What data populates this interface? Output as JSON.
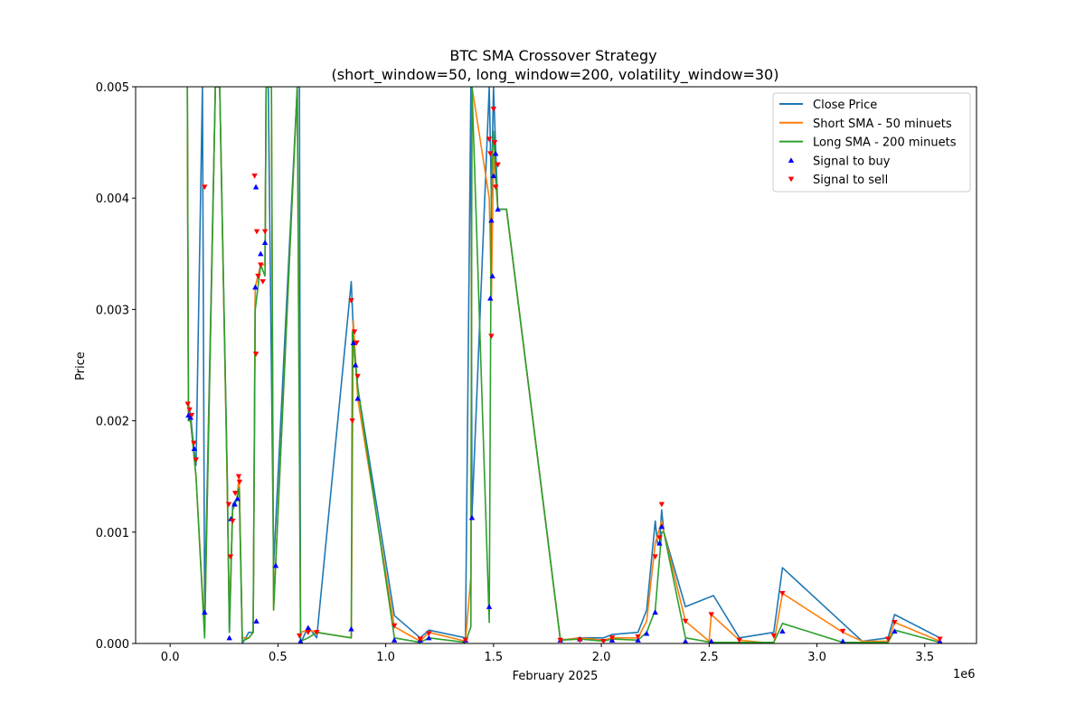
{
  "chart_data": {
    "type": "line",
    "title": "BTC SMA Crossover Strategy",
    "subtitle": "(short_window=50, long_window=200, volatility_window=30)",
    "xlabel": "February 2025",
    "ylabel": "Price",
    "x_offset_text": "1e6",
    "xlim": [
      -160000,
      3740000
    ],
    "ylim": [
      0,
      0.005
    ],
    "x_ticks": [
      0,
      500000,
      1000000,
      1500000,
      2000000,
      2500000,
      3000000,
      3500000
    ],
    "x_tick_labels": [
      "0.0",
      "0.5",
      "1.0",
      "1.5",
      "2.0",
      "2.5",
      "3.0",
      "3.5"
    ],
    "y_ticks": [
      0,
      0.001,
      0.002,
      0.003,
      0.004,
      0.005
    ],
    "y_tick_labels": [
      "0.000",
      "0.001",
      "0.002",
      "0.003",
      "0.004",
      "0.005"
    ],
    "grid": false,
    "legend_position": "top-right",
    "colors": {
      "close": "#1f77b4",
      "short": "#ff7f0e",
      "long": "#2ca02c",
      "buy": "#0000ff",
      "sell": "#ff0000"
    },
    "series": [
      {
        "name": "Close Price",
        "x": [
          80000,
          85000,
          95000,
          110000,
          120000,
          150000,
          160000,
          210000,
          230000,
          265000,
          275000,
          290000,
          310000,
          320000,
          335000,
          365000,
          385000,
          395000,
          420000,
          440000,
          445000,
          455000,
          480000,
          590000,
          600000,
          605000,
          640000,
          680000,
          840000,
          850000,
          870000,
          1040000,
          1160000,
          1200000,
          1370000,
          1395000,
          1400000,
          1480000,
          1490000,
          1500000,
          1520000,
          1560000,
          1810000,
          1900000,
          2010000,
          2050000,
          2170000,
          2210000,
          2250000,
          2260000,
          2270000,
          2280000,
          2290000,
          2390000,
          2520000,
          2640000,
          2800000,
          2840000,
          3120000,
          3210000,
          3330000,
          3360000,
          3570000
        ],
        "y": [
          0.005,
          0.00215,
          0.00205,
          0.00175,
          0.0016,
          0.005,
          0.0003,
          0.005,
          0.005,
          0.0015,
          0.0001,
          0.00125,
          0.0013,
          0.0015,
          0.0,
          0.0001,
          0.0001,
          0.0032,
          0.0034,
          0.0034,
          0.005,
          0.005,
          0.0007,
          0.005,
          0.005,
          0.0,
          0.00015,
          5e-05,
          0.00325,
          0.0028,
          0.0023,
          0.00025,
          5e-05,
          0.00012,
          5e-05,
          0.005,
          0.00115,
          0.005,
          0.004,
          0.005,
          0.0039,
          0.0039,
          3e-05,
          5e-05,
          5e-05,
          8e-05,
          0.0001,
          0.0003,
          0.0011,
          0.0009,
          0.0009,
          0.0012,
          0.001,
          0.00033,
          0.00043,
          5e-05,
          0.0001,
          0.00068,
          0.00018,
          2e-05,
          5e-05,
          0.00026,
          5e-05
        ]
      },
      {
        "name": "Short SMA - 50 minuets",
        "x": [
          80000,
          85000,
          95000,
          110000,
          120000,
          160000,
          210000,
          230000,
          265000,
          275000,
          290000,
          310000,
          320000,
          335000,
          365000,
          385000,
          395000,
          420000,
          440000,
          445000,
          470000,
          480000,
          590000,
          605000,
          640000,
          680000,
          840000,
          850000,
          870000,
          1040000,
          1160000,
          1200000,
          1370000,
          1395000,
          1400000,
          1480000,
          1490000,
          1500000,
          1520000,
          1560000,
          1810000,
          1900000,
          2010000,
          2050000,
          2170000,
          2210000,
          2250000,
          2280000,
          2290000,
          2390000,
          2500000,
          2510000,
          2640000,
          2800000,
          2840000,
          3120000,
          3210000,
          3330000,
          3360000,
          3570000
        ],
        "y": [
          0.005,
          0.0021,
          0.002,
          0.0017,
          0.0015,
          0.0001,
          0.005,
          0.005,
          0.0014,
          0.0002,
          0.0012,
          0.0013,
          0.0015,
          5e-05,
          5e-05,
          0.0001,
          0.0032,
          0.0034,
          0.0034,
          0.005,
          0.005,
          0.0003,
          0.005,
          0.0001,
          0.00012,
          0.0001,
          5e-05,
          0.0029,
          0.0022,
          0.00015,
          2e-05,
          0.0001,
          2e-05,
          0.0006,
          0.005,
          0.004,
          0.0031,
          0.0044,
          0.0039,
          0.0039,
          3e-05,
          5e-05,
          3e-05,
          5e-05,
          5e-05,
          0.0002,
          0.0009,
          0.0011,
          0.001,
          0.0002,
          2e-05,
          0.00026,
          3e-05,
          0.0,
          0.00045,
          0.0001,
          2e-05,
          2e-05,
          0.00019,
          2e-05
        ]
      },
      {
        "name": "Long SMA - 200 minuets",
        "x": [
          80000,
          85000,
          95000,
          110000,
          120000,
          160000,
          210000,
          230000,
          265000,
          275000,
          290000,
          310000,
          320000,
          335000,
          365000,
          385000,
          395000,
          420000,
          440000,
          445000,
          470000,
          480000,
          590000,
          605000,
          640000,
          680000,
          840000,
          845000,
          870000,
          1040000,
          1160000,
          1200000,
          1370000,
          1395000,
          1400000,
          1480000,
          1490000,
          1500000,
          1520000,
          1560000,
          1810000,
          1900000,
          2010000,
          2050000,
          2170000,
          2210000,
          2250000,
          2280000,
          2290000,
          2390000,
          2510000,
          2640000,
          2800000,
          2840000,
          3120000,
          3210000,
          3330000,
          3360000,
          3570000
        ],
        "y": [
          0.005,
          0.002,
          0.002,
          0.0017,
          0.0015,
          5e-05,
          0.005,
          0.005,
          0.0015,
          0.0001,
          0.0012,
          0.0013,
          0.0014,
          2e-05,
          5e-05,
          0.0001,
          0.003,
          0.0034,
          0.0033,
          0.005,
          0.005,
          0.0003,
          0.005,
          2e-05,
          5e-05,
          0.0001,
          5e-05,
          0.0028,
          0.0023,
          5e-05,
          1e-05,
          5e-05,
          1e-05,
          0.00015,
          0.005,
          0.00019,
          0.0042,
          0.0046,
          0.0039,
          0.0039,
          3e-05,
          4e-05,
          2e-05,
          4e-05,
          3e-05,
          0.0001,
          0.0003,
          0.001,
          0.001,
          5e-05,
          1e-05,
          1e-05,
          1e-05,
          0.00018,
          1e-05,
          1e-05,
          1e-05,
          0.00012,
          1e-05
        ]
      }
    ],
    "markers": [
      {
        "name": "Signal to buy",
        "symbol": "triangle-up",
        "x": [
          85000,
          95000,
          112000,
          160000,
          275000,
          282000,
          300000,
          312000,
          395000,
          398000,
          400000,
          420000,
          440000,
          490000,
          605000,
          640000,
          840000,
          850000,
          860000,
          870000,
          1040000,
          1160000,
          1200000,
          1370000,
          1400000,
          1480000,
          1485000,
          1490000,
          1495000,
          1500000,
          1510000,
          1520000,
          1810000,
          1900000,
          2050000,
          2170000,
          2210000,
          2250000,
          2270000,
          2280000,
          2390000,
          2510000,
          2840000,
          3120000,
          3360000,
          3570000
        ],
        "y": [
          0.00205,
          0.00203,
          0.00175,
          0.00028,
          5e-05,
          0.00112,
          0.00125,
          0.0013,
          0.0032,
          0.0041,
          0.0002,
          0.0035,
          0.0036,
          0.0007,
          2e-05,
          0.00014,
          0.00013,
          0.0027,
          0.0025,
          0.0022,
          3e-05,
          3e-05,
          5e-05,
          3e-05,
          0.00113,
          0.00033,
          0.0031,
          0.0038,
          0.0033,
          0.0042,
          0.0044,
          0.0039,
          3e-05,
          4e-05,
          3e-05,
          3e-05,
          9e-05,
          0.00028,
          0.0009,
          0.00105,
          2e-05,
          2e-05,
          0.00011,
          2e-05,
          0.00011,
          2e-05
        ]
      },
      {
        "name": "Signal to sell",
        "symbol": "triangle-down",
        "x": [
          82000,
          90000,
          100000,
          110000,
          120000,
          160000,
          272000,
          280000,
          290000,
          302000,
          318000,
          322000,
          392000,
          398000,
          402000,
          408000,
          420000,
          430000,
          440000,
          600000,
          640000,
          680000,
          840000,
          845000,
          855000,
          865000,
          870000,
          1040000,
          1160000,
          1200000,
          1370000,
          1480000,
          1485000,
          1490000,
          1500000,
          1505000,
          1510000,
          1520000,
          1810000,
          1900000,
          2010000,
          2050000,
          2170000,
          2250000,
          2270000,
          2280000,
          2390000,
          2510000,
          2640000,
          2800000,
          2840000,
          3120000,
          3330000,
          3360000,
          3570000
        ],
        "y": [
          0.00215,
          0.0021,
          0.00205,
          0.0018,
          0.00165,
          0.0041,
          0.00125,
          0.00078,
          0.0011,
          0.00135,
          0.0015,
          0.00145,
          0.0042,
          0.0026,
          0.0037,
          0.0033,
          0.0034,
          0.00325,
          0.0037,
          7e-05,
          0.0001,
          0.0001,
          0.00308,
          0.002,
          0.0028,
          0.0027,
          0.0024,
          0.00016,
          4e-05,
          9e-05,
          3e-05,
          0.00453,
          0.0044,
          0.00276,
          0.0048,
          0.0045,
          0.0041,
          0.0043,
          3e-05,
          3e-05,
          2e-05,
          5e-05,
          6e-05,
          0.00078,
          0.00095,
          0.00125,
          0.0002,
          0.00026,
          3e-05,
          7e-05,
          0.00045,
          0.00011,
          4e-05,
          0.00019,
          4e-05
        ]
      }
    ]
  }
}
